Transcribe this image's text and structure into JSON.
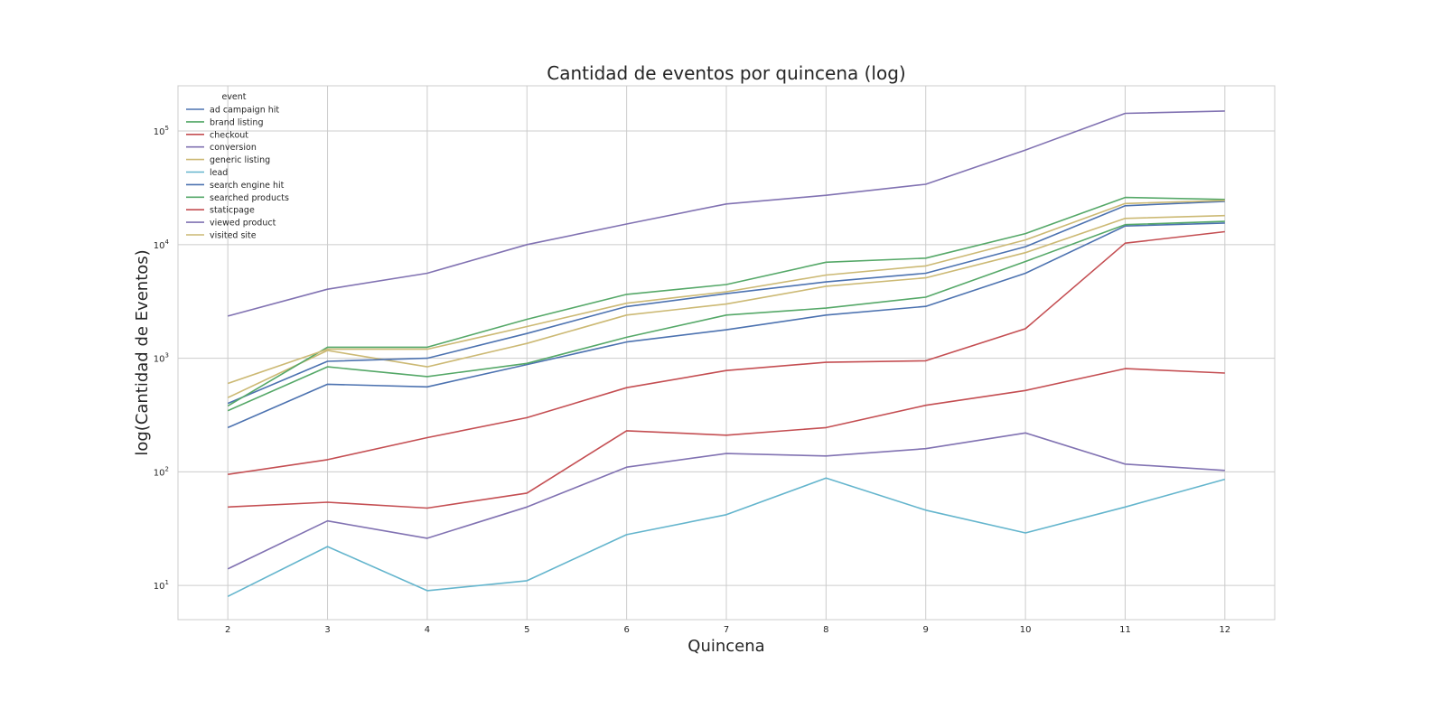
{
  "chart_data": {
    "type": "line",
    "title": "Cantidad de eventos por quincena (log)",
    "xlabel": "Quincena",
    "ylabel": "log(Cantidad de Eventos)",
    "yscale": "log",
    "ylim": [
      5,
      250000
    ],
    "xlim": [
      1.5,
      12.5
    ],
    "grid": true,
    "legend_placement": "top-left",
    "legend_title": "event",
    "x": [
      2,
      3,
      4,
      5,
      6,
      7,
      8,
      9,
      10,
      11,
      12
    ],
    "x_ticks": [
      "2",
      "3",
      "4",
      "5",
      "6",
      "7",
      "8",
      "9",
      "10",
      "11",
      "12"
    ],
    "y_ticks": [
      {
        "value": 10,
        "base": "10",
        "exp": "1"
      },
      {
        "value": 100,
        "base": "10",
        "exp": "2"
      },
      {
        "value": 1000,
        "base": "10",
        "exp": "3"
      },
      {
        "value": 10000,
        "base": "10",
        "exp": "4"
      },
      {
        "value": 100000,
        "base": "10",
        "exp": "5"
      }
    ],
    "series": [
      {
        "name": "ad campaign hit",
        "color": "#4c72b0",
        "values": [
          245,
          590,
          560,
          880,
          1390,
          1780,
          2400,
          2860,
          5600,
          14600,
          15500
        ]
      },
      {
        "name": "brand listing",
        "color": "#55a868",
        "values": [
          345,
          840,
          690,
          900,
          1530,
          2400,
          2760,
          3450,
          7100,
          15000,
          16000
        ]
      },
      {
        "name": "checkout",
        "color": "#c44e52",
        "values": [
          49,
          54,
          48,
          65,
          230,
          210,
          245,
          385,
          520,
          810,
          740
        ]
      },
      {
        "name": "conversion",
        "color": "#8172b2",
        "values": [
          14,
          37,
          26,
          49,
          110,
          145,
          138,
          160,
          220,
          117,
          103
        ]
      },
      {
        "name": "generic listing",
        "color": "#ccb974",
        "values": [
          450,
          1170,
          840,
          1350,
          2400,
          3000,
          4300,
          5100,
          8500,
          17000,
          18000
        ]
      },
      {
        "name": "lead",
        "color": "#64b5cd",
        "values": [
          8,
          22,
          9,
          11,
          28,
          42,
          88,
          46,
          29,
          49,
          86
        ]
      },
      {
        "name": "search engine hit",
        "color": "#4c72b0",
        "values": [
          400,
          940,
          1000,
          1650,
          2850,
          3700,
          4700,
          5600,
          9600,
          22000,
          24000
        ]
      },
      {
        "name": "searched products",
        "color": "#55a868",
        "values": [
          380,
          1250,
          1250,
          2200,
          3650,
          4450,
          7000,
          7600,
          12500,
          26000,
          25000
        ]
      },
      {
        "name": "staticpage",
        "color": "#c44e52",
        "values": [
          95,
          128,
          200,
          300,
          550,
          780,
          920,
          950,
          1820,
          10300,
          13000
        ]
      },
      {
        "name": "viewed product",
        "color": "#8172b2",
        "values": [
          2350,
          4050,
          5600,
          10000,
          15200,
          22800,
          27200,
          34000,
          68000,
          143000,
          150000
        ]
      },
      {
        "name": "visited site",
        "color": "#ccb974",
        "values": [
          600,
          1200,
          1200,
          1900,
          3050,
          3850,
          5400,
          6500,
          11000,
          23000,
          24500
        ]
      }
    ]
  }
}
